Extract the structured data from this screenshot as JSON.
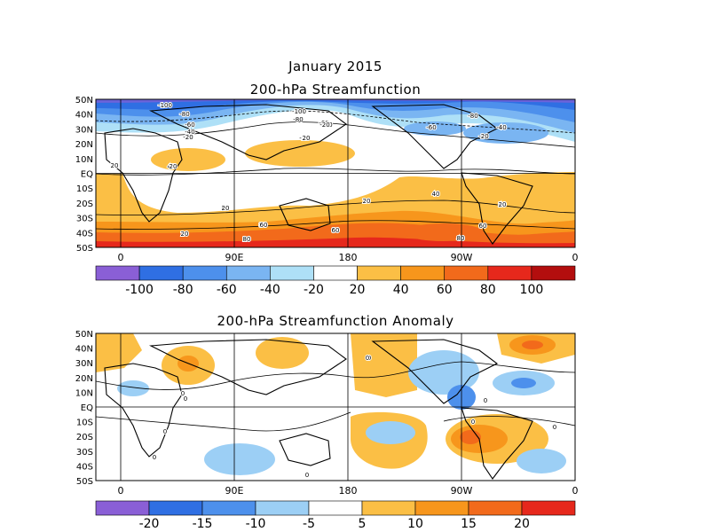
{
  "figure": {
    "month_title": "January 2015",
    "colors": {
      "neg_top": [
        "#8a5fd6",
        "#2f6fe3",
        "#4d90ec",
        "#7ab5f2",
        "#aee0f7"
      ],
      "white": "#ffffff",
      "pos_top": [
        "#fbbf45",
        "#f7961c",
        "#f26a1b",
        "#e6281c",
        "#b30e0e"
      ],
      "land": "#000000"
    }
  },
  "panels": [
    {
      "id": "streamfunction",
      "title": "200-hPa Streamfunction",
      "lat_labels": [
        "50N",
        "40N",
        "30N",
        "20N",
        "10N",
        "EQ",
        "10S",
        "20S",
        "30S",
        "40S",
        "50S"
      ],
      "lon_labels": [
        "0",
        "90E",
        "180",
        "90W",
        "0"
      ],
      "colorbar": {
        "ticks": [
          "-100",
          "-80",
          "-60",
          "-40",
          "-20",
          "20",
          "40",
          "60",
          "80",
          "100"
        ],
        "colors": [
          "#8a5fd6",
          "#2f6fe3",
          "#4d90ec",
          "#7ab5f2",
          "#aee0f7",
          "#ffffff",
          "#fbbf45",
          "#f7961c",
          "#f26a1b",
          "#e6281c",
          "#b30e0e"
        ]
      },
      "contour_labels": [
        "-100",
        "-80",
        "-60",
        "-40",
        "-20",
        "20",
        "40",
        "60",
        "80",
        "-100",
        "-80",
        "-60",
        "-40",
        "-20",
        "-60",
        "-80",
        "-40",
        "-20",
        "20",
        "20",
        "20",
        "20",
        "40",
        "60",
        "80",
        "20",
        "40",
        "40",
        "20",
        "60",
        "80",
        "80",
        "60",
        "-20",
        "20"
      ]
    },
    {
      "id": "anomaly",
      "title": "200-hPa Streamfunction Anomaly",
      "lat_labels": [
        "50N",
        "40N",
        "30N",
        "20N",
        "10N",
        "EQ",
        "10S",
        "20S",
        "30S",
        "40S",
        "50S"
      ],
      "lon_labels": [
        "0",
        "90E",
        "180",
        "90W",
        "0"
      ],
      "colorbar": {
        "ticks": [
          "-20",
          "-15",
          "-10",
          "-5",
          "5",
          "10",
          "15",
          "20"
        ],
        "colors": [
          "#8a5fd6",
          "#2f6fe3",
          "#4d90ec",
          "#9ccff5",
          "#ffffff",
          "#fbbf45",
          "#f7961c",
          "#f26a1b",
          "#e6281c"
        ]
      },
      "contour_labels": [
        "0",
        "0",
        "0",
        "0",
        "0",
        "0",
        "0",
        "0",
        "0",
        "0",
        "0"
      ]
    }
  ]
}
